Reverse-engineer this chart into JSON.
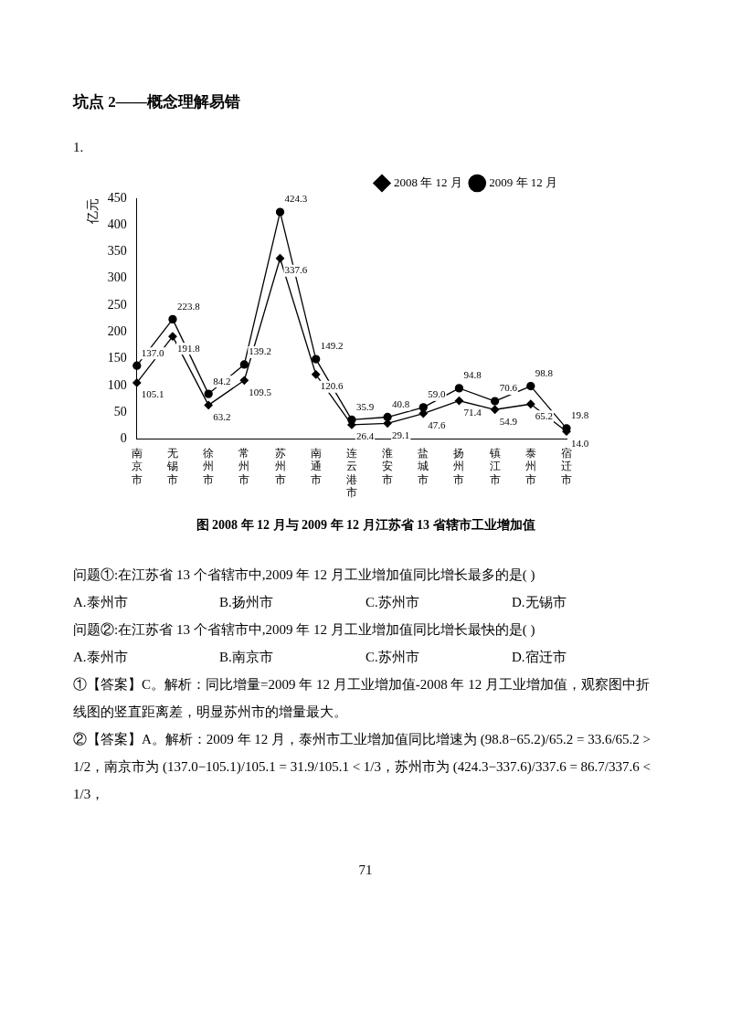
{
  "chart_data": {
    "type": "line",
    "title": "图 2008 年 12 月与 2009 年 12 月江苏省 13 省辖市工业增加值",
    "ylabel": "亿元",
    "categories": [
      "南京市",
      "无锡市",
      "徐州市",
      "常州市",
      "苏州市",
      "南通市",
      "连云港市",
      "淮安市",
      "盐城市",
      "扬州市",
      "镇江市",
      "泰州市",
      "宿迁市"
    ],
    "series": [
      {
        "name": "2008 年 12 月",
        "color": "#000000",
        "marker": "diamond",
        "values": [
          105.1,
          191.8,
          63.2,
          109.5,
          337.6,
          120.6,
          26.4,
          29.1,
          47.6,
          71.4,
          54.9,
          65.2,
          14.0
        ],
        "value_labels": [
          "105.1",
          "191.8",
          "63.2",
          "109.5",
          "337.6",
          "120.6",
          "26.4",
          "29.1",
          "47.6",
          "71.4",
          "54.9",
          "65.2",
          "14.0"
        ]
      },
      {
        "name": "2009 年 12 月",
        "color": "#000000",
        "marker": "circle",
        "values": [
          137.0,
          223.8,
          84.2,
          139.2,
          424.3,
          149.2,
          35.9,
          40.8,
          59.0,
          94.8,
          70.6,
          98.8,
          19.8
        ],
        "value_labels": [
          "137.0",
          "223.8",
          "84.2",
          "139.2",
          "424.3",
          "149.2",
          "35.9",
          "40.8",
          "59.0",
          "94.8",
          "70.6",
          "98.8",
          "19.8"
        ]
      }
    ],
    "ylim": [
      0,
      450
    ],
    "yticks": [
      0,
      50,
      100,
      150,
      200,
      250,
      300,
      350,
      400,
      450
    ],
    "grid": false,
    "legend": "top right",
    "annotations": [
      "坑点 2——概念理解易错",
      "1.",
      "问题①:在江苏省 13 个省辖市中,2009 年 12 月工业增加值同比增长最多的是(      )",
      "A.泰州市",
      "B.扬州市",
      "C.苏州市",
      "D.无锡市",
      "问题②:在江苏省 13 个省辖市中,2009 年 12 月工业增加值同比增长最快的是(      )",
      "A.泰州市",
      "B.南京市",
      "C.苏州市",
      "D.宿迁市",
      "①【答案】C。解析：同比增量=2009 年 12 月工业增加值-2008 年 12 月工业增加值，观察图中折线图的竖直距离差，明显苏州市的增量最大。",
      "②【答案】A。解析：2009 年 12 月，泰州市工业增加值同比增速为 (98.8−65.2)/65.2 = 33.6/65.2 > 1/2，南京市为 (137.0−105.1)/105.1 = 31.9/105.1 < 1/3，苏州市为 (424.3−337.6)/337.6 = 86.7/337.6 < 1/3，",
      "71"
    ]
  }
}
